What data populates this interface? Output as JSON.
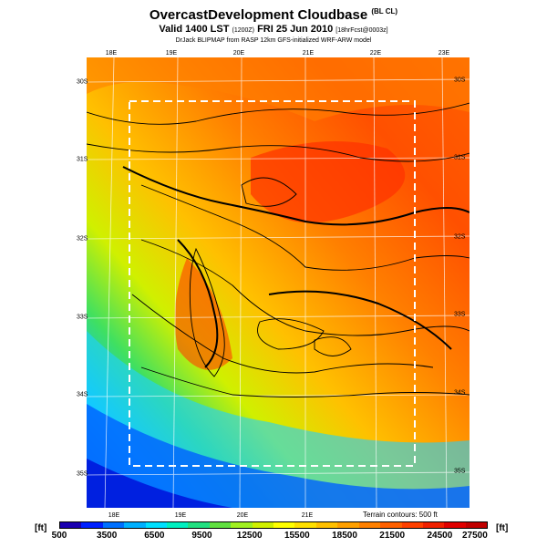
{
  "header": {
    "title": "OvercastDevelopment Cloudbase",
    "title_sub": "(BL CL)",
    "valid": "Valid 1400 LST",
    "valid_code": "(1200Z)",
    "date": "FRI 25 Jun 2010",
    "fcst": "[18hrFcst@0003z]",
    "source": "DrJack BLIPMAP from RASP 12km GFS-initialized WRF-ARW model"
  },
  "axes": {
    "top_lon": [
      "18E",
      "19E",
      "20E",
      "21E",
      "22E",
      "23E"
    ],
    "bottom_lon": [
      "18E",
      "19E",
      "20E",
      "21E"
    ],
    "left_lat": [
      "30S",
      "31S",
      "32S",
      "33S",
      "34S",
      "35S"
    ],
    "right_lat": [
      "30S",
      "31S",
      "32S",
      "33S",
      "34S",
      "35S"
    ]
  },
  "legend": {
    "terrain_note": "Terrain contours: 500 ft",
    "unit_left": "[ft]",
    "unit_right": "[ft]",
    "ticks": [
      "500",
      "3500",
      "6500",
      "9500",
      "12500",
      "15500",
      "18500",
      "21500",
      "24500",
      "27500"
    ],
    "colors": [
      "#1a00b0",
      "#0020ff",
      "#0070ff",
      "#00b0ff",
      "#00e0ff",
      "#00f0c0",
      "#20e080",
      "#60e040",
      "#a0f020",
      "#d0f000",
      "#ffff00",
      "#ffe000",
      "#ffc000",
      "#ffa000",
      "#ff8000",
      "#ff6000",
      "#ff4000",
      "#f02000",
      "#e00000",
      "#c00000"
    ]
  }
}
